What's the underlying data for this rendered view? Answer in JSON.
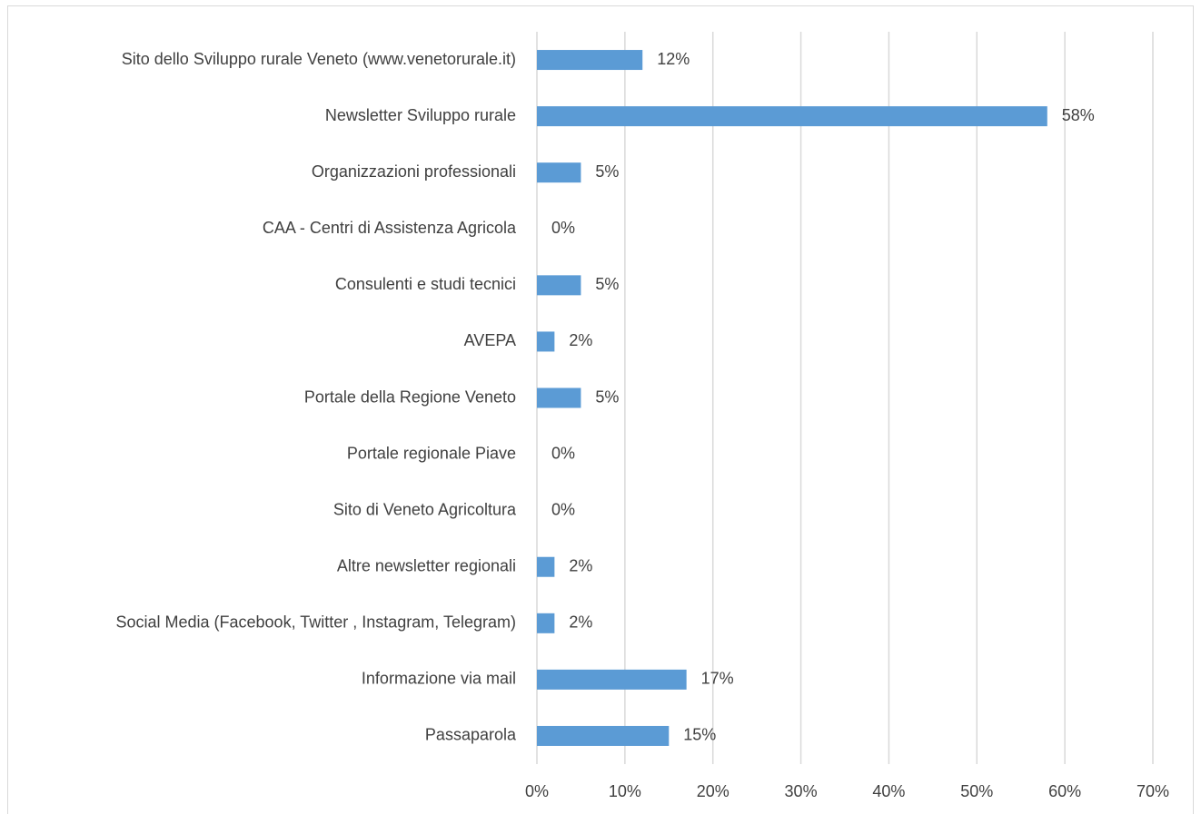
{
  "chart_data": {
    "type": "bar",
    "orientation": "horizontal",
    "categories": [
      "Sito dello Sviluppo rurale Veneto  (www.venetorurale.it)",
      "Newsletter Sviluppo rurale",
      "Organizzazioni professionali",
      "CAA - Centri di Assistenza Agricola",
      "Consulenti e studi tecnici",
      "AVEPA",
      "Portale della Regione Veneto",
      "Portale regionale Piave",
      "Sito di Veneto Agricoltura",
      "Altre newsletter regionali",
      "Social Media (Facebook, Twitter , Instagram, Telegram)",
      "Informazione via mail",
      "Passaparola"
    ],
    "values": [
      12,
      58,
      5,
      0,
      5,
      2,
      5,
      0,
      0,
      2,
      2,
      17,
      15
    ],
    "value_labels": [
      "12%",
      "58%",
      "5%",
      "0%",
      "5%",
      "2%",
      "5%",
      "0%",
      "0%",
      "2%",
      "2%",
      "17%",
      "15%"
    ],
    "color": "#5b9bd5",
    "xlim": [
      0,
      70
    ],
    "xticks": [
      {
        "value": 0,
        "label": "0%"
      },
      {
        "value": 10,
        "label": "10%"
      },
      {
        "value": 20,
        "label": "20%"
      },
      {
        "value": 30,
        "label": "30%"
      },
      {
        "value": 40,
        "label": "40%"
      },
      {
        "value": 50,
        "label": "50%"
      },
      {
        "value": 60,
        "label": "60%"
      },
      {
        "value": 70,
        "label": "70%"
      }
    ],
    "grid": true
  }
}
